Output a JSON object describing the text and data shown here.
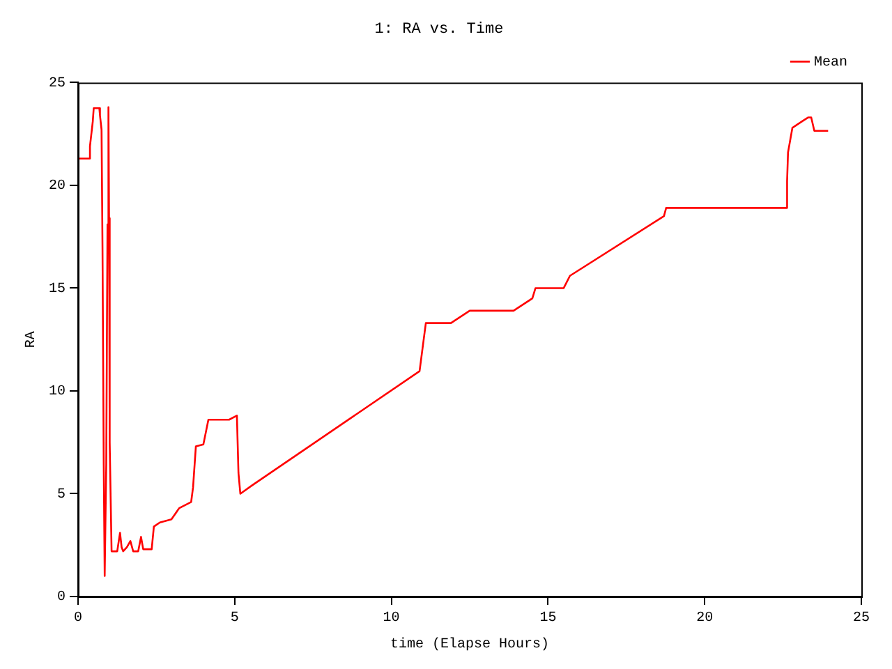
{
  "chart_data": {
    "type": "line",
    "title": "1: RA vs. Time",
    "xlabel": "time (Elapse Hours)",
    "ylabel": "RA",
    "xlim": [
      0,
      25
    ],
    "xticks": [
      0,
      5,
      10,
      15,
      20,
      25
    ],
    "ylim": [
      0,
      25
    ],
    "yticks": [
      0,
      5,
      10,
      15,
      20,
      25
    ],
    "grid": false,
    "legend": "top right",
    "marker": "none",
    "line_style": "solid",
    "series": [
      {
        "name": "Mean",
        "color": "#ff0000",
        "x": [
          0,
          0.38,
          0.38,
          0.47,
          0.5,
          0.68,
          0.7,
          0.75,
          0.78,
          0.82,
          0.85,
          0.9,
          0.94,
          0.97,
          0.99,
          1.01,
          1.07,
          1.25,
          1.34,
          1.39,
          1.44,
          1.56,
          1.67,
          1.76,
          1.92,
          2.01,
          2.08,
          2.35,
          2.42,
          2.61,
          2.98,
          3.23,
          3.61,
          3.67,
          3.76,
          4.0,
          4.16,
          4.82,
          5.07,
          5.12,
          5.18,
          5.55,
          10.9,
          11.1,
          11.9,
          12.5,
          13.9,
          14.5,
          14.6,
          15.5,
          15.7,
          18.7,
          18.77,
          22.6,
          22.62,
          22.64,
          22.66,
          22.8,
          22.95,
          23.1,
          23.3,
          23.4,
          23.5,
          23.94
        ],
        "values": [
          21.3,
          21.3,
          21.9,
          23.1,
          23.75,
          23.75,
          23.4,
          22.7,
          17.0,
          6.4,
          1.0,
          6.4,
          18.1,
          23.8,
          18.4,
          7.5,
          2.2,
          2.2,
          3.1,
          2.4,
          2.2,
          2.4,
          2.7,
          2.2,
          2.2,
          2.9,
          2.3,
          2.3,
          3.4,
          3.6,
          3.75,
          4.3,
          4.6,
          5.3,
          7.3,
          7.4,
          8.6,
          8.6,
          8.8,
          6.0,
          5.0,
          5.4,
          10.96,
          13.3,
          13.3,
          13.9,
          13.9,
          14.5,
          15.0,
          15.0,
          15.6,
          18.5,
          18.9,
          18.9,
          19.5,
          20.2,
          21.6,
          22.8,
          22.95,
          23.1,
          23.3,
          23.3,
          22.65,
          22.65
        ]
      }
    ]
  }
}
